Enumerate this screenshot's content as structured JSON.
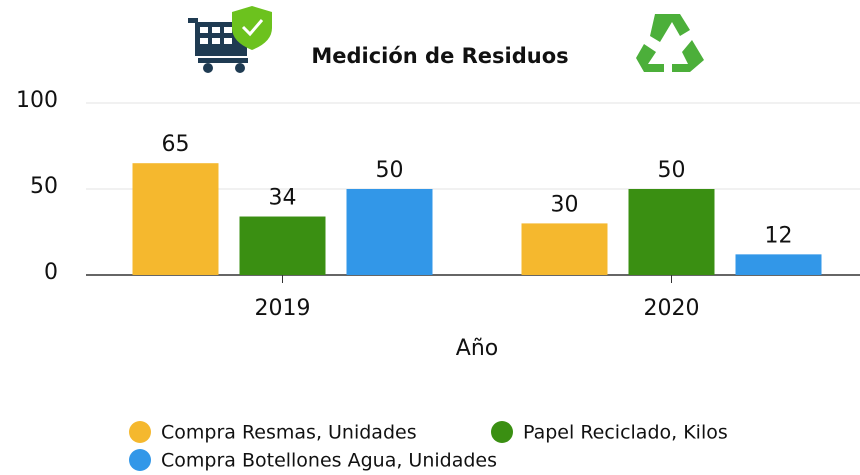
{
  "chart_data": {
    "type": "bar",
    "title": "Medición de Residuos",
    "x_label": "Año",
    "categories": [
      "2019",
      "2020"
    ],
    "series": [
      {
        "name": "Compra Resmas, Unidades",
        "color": "#f5b82e",
        "values": [
          65,
          30
        ]
      },
      {
        "name": "Papel Reciclado, Kilos",
        "color": "#3a8f12",
        "values": [
          34,
          50
        ]
      },
      {
        "name": "Compra Botellones Agua, Unidades",
        "color": "#3297e8",
        "values": [
          50,
          12
        ]
      }
    ],
    "ylim": [
      0,
      100
    ],
    "yticks": [
      0,
      50,
      100
    ],
    "grid": true,
    "legend": "bottom"
  }
}
